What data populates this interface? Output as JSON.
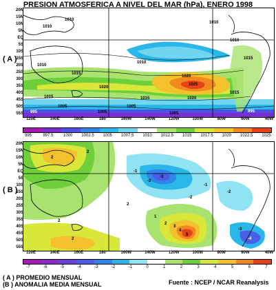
{
  "title": "PRESION ATMOSFERICA A NIVEL DEL MAR (hPa), ENERO 1998",
  "panels": {
    "a_label": "( A )",
    "b_label": "( B )"
  },
  "lat_labels": [
    "20N",
    "15N",
    "10N",
    "5N",
    "EQ",
    "5S",
    "10S",
    "15S",
    "20S",
    "25S",
    "30S",
    "35S",
    "40S",
    "45S",
    "50S",
    "55S"
  ],
  "lon_labels": [
    "120E",
    "140E",
    "160E",
    "180",
    "160W",
    "140W",
    "120W",
    "100W",
    "80W",
    "60W",
    "40W"
  ],
  "colorbar_a": {
    "labels": [
      "995",
      "997.5",
      "1000",
      "1002.5",
      "1005",
      "1007.5",
      "1010",
      "1012.5",
      "1015",
      "1017.5",
      "1020",
      "1022.5",
      "1025"
    ],
    "colors": [
      "#a51ab3",
      "#7b2fd1",
      "#4f51e6",
      "#2f86e8",
      "#2bb6e8",
      "#70d6f0",
      "#ffffff",
      "#a8e36f",
      "#6fcf3b",
      "#d9e63a",
      "#f3c12b",
      "#f08a1f",
      "#e8411a"
    ]
  },
  "colorbar_b": {
    "labels": [
      "-7",
      "-6",
      "-5",
      "-4",
      "-3",
      "-2",
      "-1",
      "0",
      "1",
      "2",
      "3",
      "4",
      "5",
      "6",
      "7"
    ],
    "colors": [
      "#a51ab3",
      "#8a2bc8",
      "#6b3fdb",
      "#4a5fe8",
      "#2f86e8",
      "#2bb6e8",
      "#8fe3f3",
      "#ffffff",
      "#a8e36f",
      "#6fcf3b",
      "#d9e63a",
      "#f3c12b",
      "#f08a1f",
      "#e8411a"
    ]
  },
  "map_a_labels": [
    "1010",
    "1010",
    "1010",
    "1010",
    "1015",
    "1015",
    "1015",
    "1015",
    "1020",
    "1020",
    "1025",
    "1010",
    "1005",
    "1005",
    "995",
    "995",
    "1010",
    "1015",
    "1020",
    "1005",
    "1005"
  ],
  "map_b_labels": [
    "2",
    "2",
    "2",
    "2",
    "2",
    "-1",
    "-2",
    "-3",
    "-2",
    "-1",
    "1",
    "2",
    "3",
    "4",
    "5",
    "-2",
    "-3",
    "-4"
  ],
  "legend": {
    "a": "( A ) PROMEDIO MENSUAL",
    "b": "(B ) ANOMALIA MEDIA MENSUAL"
  },
  "source": "Fuente :  NCEP / NCAR Reanalysis"
}
